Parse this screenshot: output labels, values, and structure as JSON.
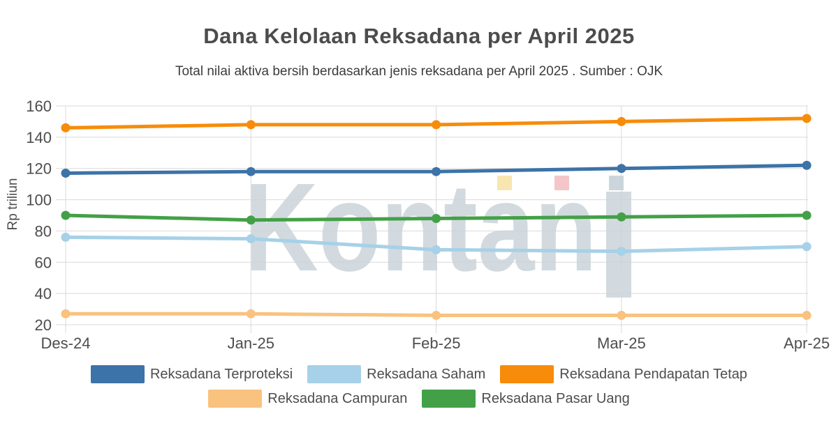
{
  "header": {
    "title": "Dana Kelolaan Reksadana per April 2025",
    "subtitle": "Total nilai aktiva bersih berdasarkan jenis reksadana per April 2025 . Sumber : OJK"
  },
  "watermark": {
    "text": "Kontan",
    "text_color": "#ccd5db",
    "square_colors": [
      "#f8e3a6",
      "#f3bfc2",
      "#c6d0d8"
    ]
  },
  "chart_data": {
    "type": "line",
    "title": "Dana Kelolaan Reksadana per April 2025",
    "subtitle": "Total nilai aktiva bersih berdasarkan jenis reksadana per April 2025 . Sumber : OJK",
    "categories": [
      "Des-24",
      "Jan-25",
      "Feb-25",
      "Mar-25",
      "Apr-25"
    ],
    "series": [
      {
        "name": "Reksadana Terproteksi",
        "color": "#3c73a8",
        "values": [
          117,
          118,
          118,
          120,
          122
        ]
      },
      {
        "name": "Reksadana Saham",
        "color": "#a6d1e8",
        "values": [
          76,
          75,
          68,
          67,
          70
        ]
      },
      {
        "name": "Reksadana Pendapatan Tetap",
        "color": "#f78c0a",
        "values": [
          146,
          148,
          148,
          150,
          152
        ]
      },
      {
        "name": "Reksadana Campuran",
        "color": "#f9c27e",
        "values": [
          27,
          27,
          26,
          26,
          26
        ]
      },
      {
        "name": "Reksadana Pasar Uang",
        "color": "#43a047",
        "values": [
          90,
          87,
          88,
          89,
          90
        ]
      }
    ],
    "xlabel": "",
    "ylabel": "Rp triliun",
    "yticks": [
      20,
      40,
      60,
      80,
      100,
      120,
      140,
      160
    ],
    "ylim": [
      20,
      160
    ],
    "grid": true,
    "legend_position": "bottom",
    "legend_rows": [
      [
        0,
        1,
        2
      ],
      [
        3,
        4
      ]
    ]
  }
}
